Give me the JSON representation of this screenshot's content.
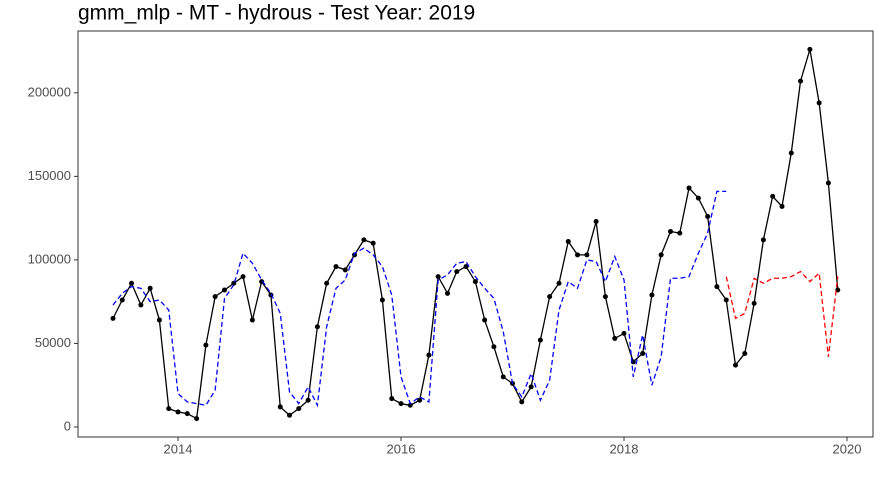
{
  "chart_data": {
    "type": "line",
    "title": "gmm_mlp - MT - hydrous - Test Year: 2019",
    "x": [
      2013.417,
      2013.5,
      2013.583,
      2013.667,
      2013.75,
      2013.833,
      2013.917,
      2014,
      2014.083,
      2014.167,
      2014.25,
      2014.333,
      2014.417,
      2014.5,
      2014.583,
      2014.667,
      2014.75,
      2014.833,
      2014.917,
      2015,
      2015.083,
      2015.167,
      2015.25,
      2015.333,
      2015.417,
      2015.5,
      2015.583,
      2015.667,
      2015.75,
      2015.833,
      2015.917,
      2016,
      2016.083,
      2016.167,
      2016.25,
      2016.333,
      2016.417,
      2016.5,
      2016.583,
      2016.667,
      2016.75,
      2016.833,
      2016.917,
      2017,
      2017.083,
      2017.167,
      2017.25,
      2017.333,
      2017.417,
      2017.5,
      2017.583,
      2017.667,
      2017.75,
      2017.833,
      2017.917,
      2018,
      2018.083,
      2018.167,
      2018.25,
      2018.333,
      2018.417,
      2018.5,
      2018.583,
      2018.667,
      2018.75,
      2018.833,
      2018.917,
      2019,
      2019.083,
      2019.167,
      2019.25,
      2019.333,
      2019.417,
      2019.5,
      2019.583,
      2019.667,
      2019.75,
      2019.833,
      2019.917
    ],
    "series": [
      {
        "color": "#000000",
        "dashed": false,
        "markers": true,
        "values": [
          65000,
          76000,
          86000,
          73000,
          83000,
          64000,
          11000,
          9000,
          8000,
          5000,
          49000,
          78000,
          82000,
          86000,
          90000,
          64000,
          87000,
          79000,
          12000,
          7000,
          11000,
          16000,
          60000,
          86000,
          96000,
          94000,
          103000,
          112000,
          110000,
          76000,
          17000,
          14000,
          13000,
          16000,
          43000,
          90000,
          80000,
          93000,
          96000,
          87000,
          64000,
          48000,
          30000,
          26000,
          15000,
          24000,
          52000,
          78000,
          86000,
          111000,
          103000,
          103000,
          123000,
          78000,
          53000,
          56000,
          39000,
          44000,
          79000,
          103000,
          117000,
          116000,
          143000,
          137000,
          126000,
          84000,
          76000,
          37000,
          44000,
          74000,
          112000,
          138000,
          132000,
          164000,
          207000,
          226000,
          194000,
          146000,
          82000
        ]
      },
      {
        "color": "#0000ff",
        "dashed": true,
        "markers": false,
        "values": [
          73000,
          80000,
          84000,
          83000,
          75000,
          76000,
          70000,
          20000,
          15000,
          14000,
          13000,
          22000,
          77000,
          85000,
          104000,
          98000,
          88000,
          80000,
          68000,
          21000,
          14000,
          24000,
          13000,
          60000,
          83000,
          88000,
          104000,
          107000,
          103000,
          96000,
          79000,
          30000,
          14000,
          18000,
          15000,
          88000,
          91000,
          98000,
          99000,
          90000,
          83000,
          77000,
          57000,
          26000,
          18000,
          32000,
          16000,
          28000,
          70000,
          87000,
          83000,
          100000,
          99000,
          87000,
          102000,
          88000,
          30000,
          55000,
          25000,
          42000,
          89000,
          89000,
          90000,
          104000,
          116000,
          141000,
          141000,
          null,
          null,
          null,
          null,
          null,
          null,
          null,
          null,
          null,
          null,
          null,
          null
        ]
      },
      {
        "color": "#ff0000",
        "dashed": true,
        "markers": false,
        "values": [
          null,
          null,
          null,
          null,
          null,
          null,
          null,
          null,
          null,
          null,
          null,
          null,
          null,
          null,
          null,
          null,
          null,
          null,
          null,
          null,
          null,
          null,
          null,
          null,
          null,
          null,
          null,
          null,
          null,
          null,
          null,
          null,
          null,
          null,
          null,
          null,
          null,
          null,
          null,
          null,
          null,
          null,
          null,
          null,
          null,
          null,
          null,
          null,
          null,
          null,
          null,
          null,
          null,
          null,
          null,
          null,
          null,
          null,
          null,
          null,
          null,
          null,
          null,
          null,
          null,
          null,
          90000,
          65000,
          68000,
          89000,
          86000,
          89000,
          89000,
          90000,
          93000,
          87000,
          92000,
          42000,
          90000
        ]
      }
    ],
    "xlim": [
      2013.103,
      2020.233
    ],
    "xticks": [
      2014,
      2016,
      2018,
      2020
    ],
    "ylim": [
      -6000,
      237000
    ],
    "yticks": [
      0,
      50000,
      100000,
      150000,
      200000
    ],
    "grid": false
  }
}
